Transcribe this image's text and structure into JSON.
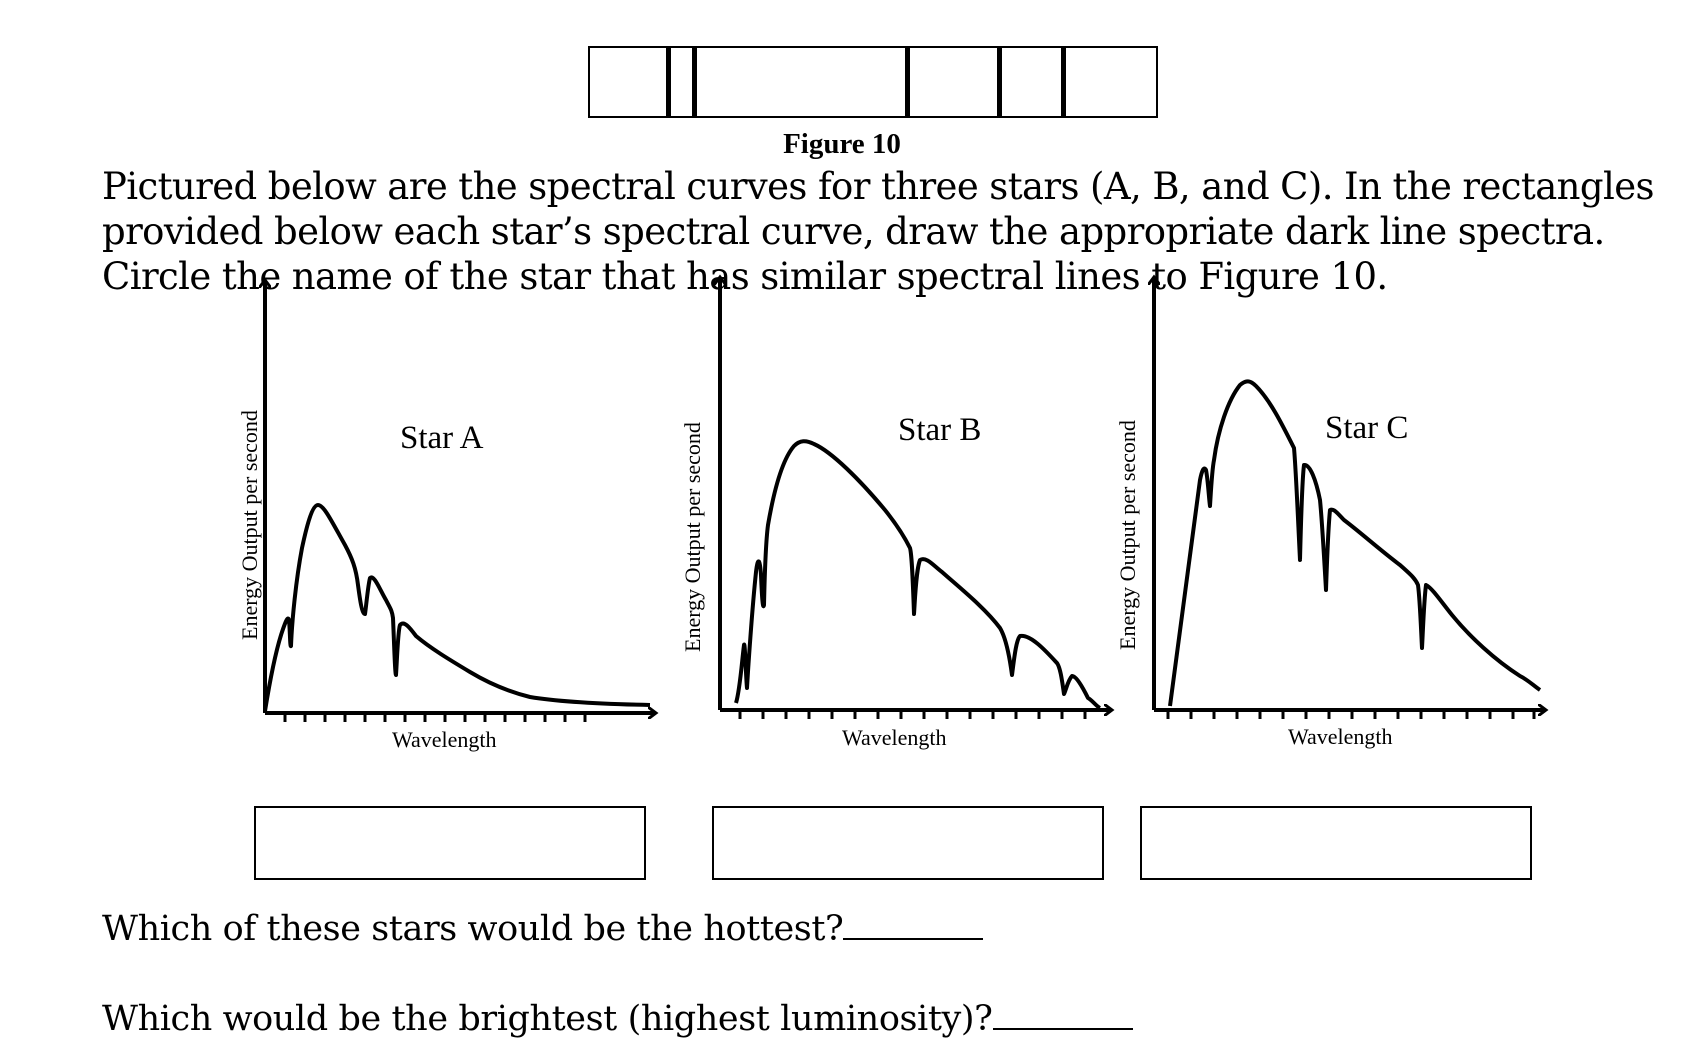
{
  "figure": {
    "caption": "Figure 10",
    "line_positions": [
      0.137,
      0.182,
      0.557,
      0.718,
      0.829
    ]
  },
  "instructions": "Pictured below are the spectral curves for three stars (A, B, and C). In the rectangles provided below each star’s spectral curve, draw the appropriate dark line spectra. Circle the name of the star that has similar spectral lines to Figure 10.",
  "graphs": [
    {
      "title": "Star A",
      "xlabel": "Wavelength",
      "ylabel": "Energy Output per second"
    },
    {
      "title": "Star B",
      "xlabel": "Wavelength",
      "ylabel": "Energy Output per second"
    },
    {
      "title": "Star C",
      "xlabel": "Wavelength",
      "ylabel": "Energy Output per second"
    }
  ],
  "questions": {
    "q1": "Which of these stars would be the hottest?",
    "q2": "Which would be the brightest (highest luminosity)?"
  }
}
